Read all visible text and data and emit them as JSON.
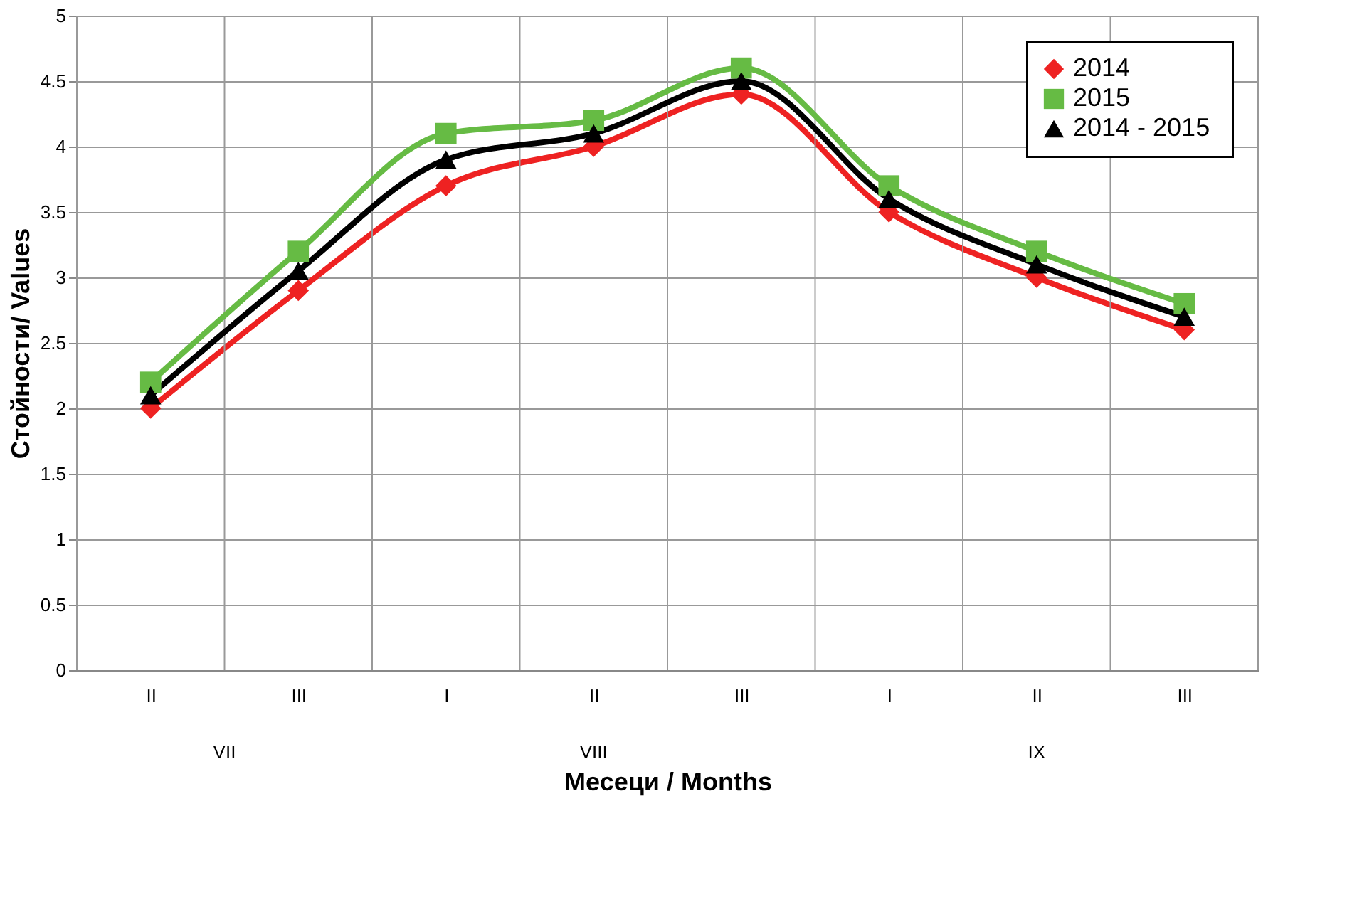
{
  "chart_data": {
    "type": "line",
    "xlabel": "Месеци / Months",
    "ylabel": "Стойности/ Values",
    "categories": [
      "II",
      "III",
      "I",
      "II",
      "III",
      "I",
      "II",
      "III"
    ],
    "series": [
      {
        "name": "2014",
        "color": "#ee2222",
        "marker": "diamond",
        "values": [
          2.0,
          2.9,
          3.7,
          4.0,
          4.4,
          3.5,
          3.0,
          2.6
        ]
      },
      {
        "name": "2015",
        "color": "#66bb44",
        "marker": "square",
        "values": [
          2.2,
          3.2,
          4.1,
          4.2,
          4.6,
          3.7,
          3.2,
          2.8
        ]
      },
      {
        "name": "2014  - 2015",
        "color": "#000000",
        "marker": "triangle",
        "values": [
          2.1,
          3.05,
          3.9,
          4.1,
          4.5,
          3.6,
          3.1,
          2.7
        ]
      }
    ],
    "annotations": [
      "VII",
      "VIII",
      "IX"
    ],
    "ylim": [
      0,
      5
    ],
    "yticks": [
      0,
      0.5,
      1,
      1.5,
      2,
      2.5,
      3,
      3.5,
      4,
      4.5,
      5
    ],
    "grid": true,
    "legend": "top right",
    "line_style": "solid"
  }
}
